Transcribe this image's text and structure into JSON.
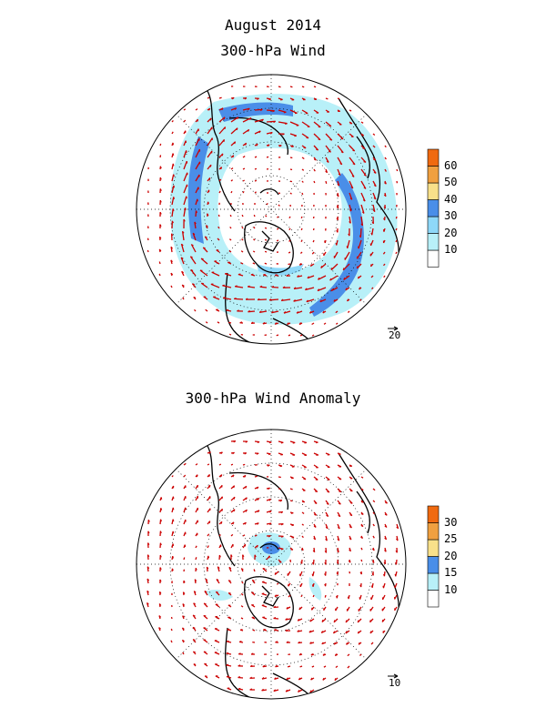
{
  "figure": {
    "month_title": "August 2014",
    "top_title": "300-hPa Wind",
    "bottom_title": "300-hPa Wind Anomaly"
  },
  "top_panel": {
    "colorbar": {
      "levels": [
        "10",
        "20",
        "30",
        "40",
        "50",
        "60"
      ],
      "colors": [
        "#ffffff",
        "#b8f0f8",
        "#8ed8f8",
        "#4a8ee8",
        "#f8e08a",
        "#f0a040",
        "#f06a10"
      ]
    },
    "reference_vector_label": "20"
  },
  "bottom_panel": {
    "colorbar": {
      "levels": [
        "10",
        "15",
        "20",
        "25",
        "30"
      ],
      "colors": [
        "#ffffff",
        "#b8f0f8",
        "#4a8ee8",
        "#f8e08a",
        "#f0a040",
        "#f06a10"
      ]
    },
    "reference_vector_label": "10"
  },
  "colors": {
    "vector": "#cc0000",
    "coast": "#000000",
    "jet_light": "#b8f0f8",
    "jet_core": "#4a8ee8"
  }
}
